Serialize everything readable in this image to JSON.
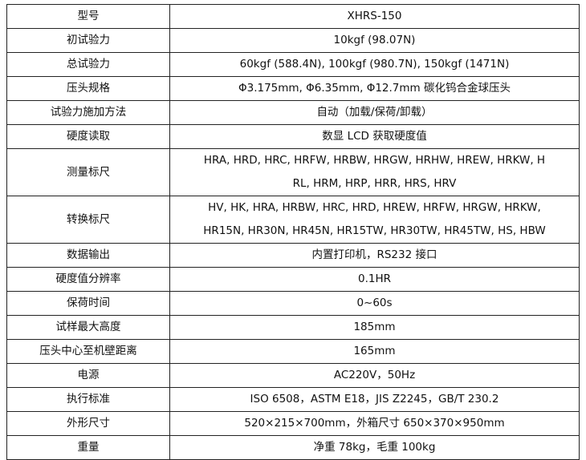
{
  "rows": [
    {
      "key": "型号",
      "value": [
        "XHRS-150"
      ]
    },
    {
      "key": "初试验力",
      "value": [
        "10kgf (98.07N)"
      ]
    },
    {
      "key": "总试验力",
      "value": [
        "60kgf (588.4N), 100kgf (980.7N), 150kgf (1471N)"
      ]
    },
    {
      "key": "压头规格",
      "value": [
        "Φ3.175mm, Φ6.35mm, Φ12.7mm 碳化钨合金球压头"
      ]
    },
    {
      "key": "试验力施加方法",
      "value": [
        "自动（加载/保荷/卸载）"
      ]
    },
    {
      "key": "硬度读取",
      "value": [
        "数显 LCD 获取硬度值"
      ]
    },
    {
      "key": "测量标尺",
      "value": [
        "HRA, HRD, HRC, HRFW, HRBW, HRGW, HRHW, HREW, HRKW, H",
        "RL, HRM, HRP, HRR, HRS, HRV"
      ]
    },
    {
      "key": "转换标尺",
      "value": [
        "HV, HK, HRA, HRBW, HRC, HRD, HREW, HRFW, HRGW, HRKW,",
        "HR15N, HR30N, HR45N, HR15TW, HR30TW, HR45TW, HS, HBW"
      ]
    },
    {
      "key": "数据输出",
      "value": [
        "内置打印机，RS232 接口"
      ]
    },
    {
      "key": "硬度值分辨率",
      "value": [
        "0.1HR"
      ]
    },
    {
      "key": "保荷时间",
      "value": [
        "0~60s"
      ]
    },
    {
      "key": "试样最大高度",
      "value": [
        "185mm"
      ]
    },
    {
      "key": "压头中心至机壁距离",
      "value": [
        "165mm"
      ]
    },
    {
      "key": "电源",
      "value": [
        "AC220V，50Hz"
      ]
    },
    {
      "key": "执行标准",
      "value": [
        "ISO 6508，ASTM E18，JIS Z2245，GB/T 230.2"
      ]
    },
    {
      "key": "外形尺寸",
      "value": [
        "520×215×700mm，外箱尺寸 650×370×950mm"
      ]
    },
    {
      "key": "重量",
      "value": [
        "净重 78kg，毛重 100kg"
      ]
    }
  ]
}
